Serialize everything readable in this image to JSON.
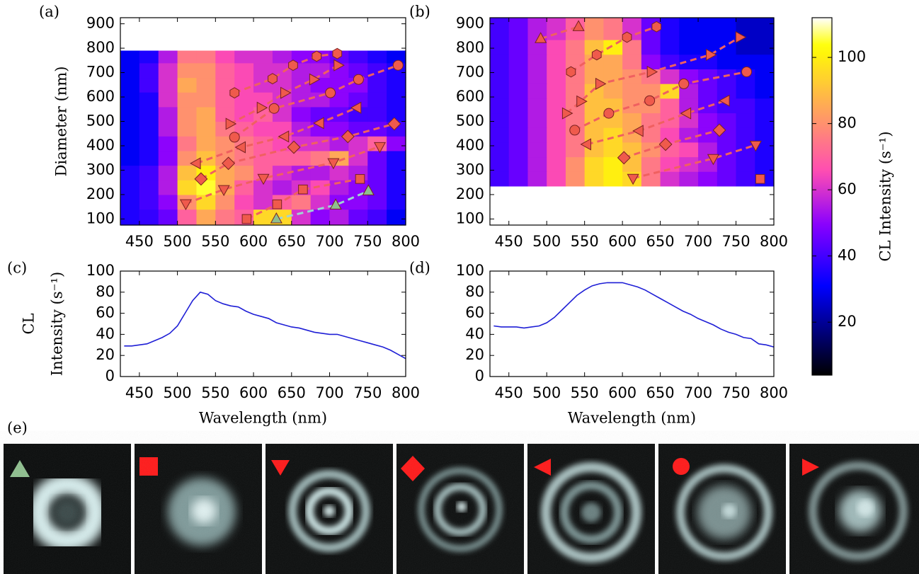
{
  "chart_data": [
    {
      "type": "heatmap",
      "label": "(a)",
      "ylabel": "Diameter (nm)",
      "colormap": "gnuplot2",
      "zlim": [
        4,
        112
      ],
      "xlim": [
        425,
        800
      ],
      "xticks": [
        450,
        500,
        550,
        600,
        650,
        700,
        750,
        800
      ],
      "ylim": [
        75,
        925
      ],
      "yticks": [
        100,
        200,
        300,
        400,
        500,
        600,
        700,
        800,
        900
      ],
      "x_edges": [
        425,
        450,
        475,
        500,
        525,
        550,
        575,
        600,
        625,
        650,
        675,
        700,
        725,
        750,
        775,
        800
      ],
      "y_edges": [
        75,
        140,
        200,
        260,
        320,
        380,
        440,
        500,
        560,
        620,
        680,
        740,
        790
      ],
      "z": [
        [
          35,
          38,
          45,
          70,
          85,
          75,
          70,
          95,
          95,
          60,
          50,
          55,
          45,
          40,
          30
        ],
        [
          35,
          40,
          50,
          80,
          95,
          80,
          65,
          60,
          70,
          75,
          60,
          50,
          50,
          45,
          35
        ],
        [
          35,
          40,
          55,
          95,
          105,
          85,
          70,
          60,
          55,
          60,
          65,
          55,
          50,
          45,
          35
        ],
        [
          35,
          40,
          55,
          90,
          100,
          85,
          80,
          70,
          60,
          55,
          55,
          60,
          55,
          45,
          35
        ],
        [
          30,
          35,
          50,
          80,
          90,
          80,
          75,
          70,
          70,
          70,
          75,
          85,
          60,
          45,
          35
        ],
        [
          30,
          35,
          50,
          75,
          85,
          80,
          75,
          70,
          65,
          60,
          60,
          55,
          60,
          70,
          50
        ],
        [
          30,
          35,
          55,
          80,
          85,
          75,
          70,
          65,
          65,
          55,
          50,
          50,
          45,
          45,
          40
        ],
        [
          30,
          35,
          55,
          80,
          85,
          70,
          65,
          70,
          60,
          50,
          45,
          45,
          40,
          40,
          35
        ],
        [
          30,
          35,
          60,
          80,
          80,
          70,
          65,
          65,
          60,
          55,
          55,
          50,
          45,
          40,
          35
        ],
        [
          30,
          40,
          60,
          85,
          80,
          70,
          65,
          60,
          60,
          55,
          50,
          50,
          50,
          40,
          35
        ],
        [
          30,
          40,
          60,
          80,
          80,
          70,
          65,
          60,
          60,
          55,
          55,
          50,
          45,
          40,
          35
        ],
        [
          30,
          35,
          55,
          75,
          75,
          65,
          60,
          60,
          55,
          50,
          50,
          45,
          40,
          35,
          30
        ]
      ],
      "series": [
        {
          "marker": "^",
          "color": "#8fbf8f",
          "line_color": "#9fd3d3",
          "x": [
            630,
            708,
            751
          ],
          "values": [
            100,
            157,
            215
          ]
        },
        {
          "marker": "s",
          "color": "#ef5a4c",
          "line_color": "#f06060",
          "x": [
            591,
            631,
            665,
            740
          ],
          "values": [
            100,
            160,
            221,
            264
          ]
        },
        {
          "marker": "v",
          "color": "#ef5a4c",
          "line_color": "#f06060",
          "x": [
            511,
            561,
            613,
            705,
            766
          ],
          "values": [
            163,
            221,
            267,
            331,
            397
          ]
        },
        {
          "marker": "D",
          "color": "#ef5a4c",
          "line_color": "#f06060",
          "x": [
            531,
            567,
            653,
            724,
            785
          ],
          "values": [
            264,
            328,
            394,
            438,
            490
          ]
        },
        {
          "marker": "<",
          "color": "#ef5a4c",
          "line_color": "#f06060",
          "x": [
            525,
            584,
            641,
            687,
            736
          ],
          "values": [
            328,
            394,
            438,
            493,
            556
          ]
        },
        {
          "marker": "o",
          "color": "#ef5a4c",
          "line_color": "#f06060",
          "x": [
            575,
            627,
            701,
            738,
            790
          ],
          "values": [
            435,
            553,
            617,
            672,
            730
          ]
        },
        {
          "marker": ">",
          "color": "#ef5a4c",
          "line_color": "#f06060",
          "x": [
            569,
            610,
            641,
            679,
            711
          ],
          "values": [
            490,
            556,
            617,
            672,
            730
          ]
        },
        {
          "marker": "h",
          "color": "#ef5a4c",
          "line_color": "#f06060",
          "x": [
            575,
            625,
            652,
            683,
            710
          ],
          "values": [
            617,
            675,
            730,
            767,
            778
          ]
        }
      ]
    },
    {
      "type": "heatmap",
      "label": "(b)",
      "colormap": "gnuplot2",
      "zlim": [
        4,
        112
      ],
      "xlim": [
        425,
        800
      ],
      "xticks": [
        450,
        500,
        550,
        600,
        650,
        700,
        750,
        800
      ],
      "ylim": [
        75,
        925
      ],
      "yticks": [
        100,
        200,
        300,
        400,
        500,
        600,
        700,
        800,
        900
      ],
      "x_edges": [
        425,
        450,
        475,
        500,
        525,
        550,
        575,
        600,
        625,
        650,
        675,
        700,
        725,
        750,
        775,
        800
      ],
      "y_edges": [
        235,
        295,
        355,
        415,
        475,
        535,
        595,
        655,
        715,
        775,
        835,
        925
      ],
      "z": [
        [
          40,
          45,
          55,
          65,
          80,
          95,
          100,
          95,
          75,
          60,
          55,
          50,
          45,
          40,
          35
        ],
        [
          40,
          45,
          55,
          65,
          80,
          95,
          100,
          90,
          75,
          65,
          60,
          55,
          45,
          40,
          35
        ],
        [
          40,
          45,
          55,
          65,
          75,
          90,
          95,
          90,
          80,
          70,
          65,
          55,
          45,
          40,
          35
        ],
        [
          40,
          45,
          55,
          65,
          75,
          90,
          95,
          85,
          75,
          65,
          55,
          50,
          45,
          40,
          35
        ],
        [
          40,
          45,
          55,
          65,
          75,
          90,
          90,
          85,
          75,
          70,
          60,
          50,
          45,
          40,
          35
        ],
        [
          40,
          45,
          55,
          65,
          75,
          90,
          90,
          80,
          80,
          70,
          55,
          45,
          40,
          40,
          35
        ],
        [
          40,
          45,
          55,
          65,
          75,
          90,
          85,
          80,
          80,
          95,
          55,
          45,
          40,
          35,
          30
        ],
        [
          40,
          45,
          55,
          65,
          75,
          85,
          85,
          80,
          75,
          60,
          50,
          45,
          40,
          35,
          30
        ],
        [
          40,
          45,
          55,
          65,
          75,
          85,
          85,
          75,
          50,
          40,
          35,
          35,
          30,
          30,
          30
        ],
        [
          40,
          45,
          55,
          65,
          75,
          90,
          100,
          75,
          45,
          35,
          30,
          30,
          30,
          25,
          25
        ],
        [
          40,
          45,
          55,
          60,
          70,
          80,
          75,
          60,
          45,
          35,
          30,
          30,
          30,
          25,
          25
        ]
      ],
      "series": [
        {
          "marker": "^",
          "color": "#ef5a4c",
          "line_color": "#f06060",
          "x": [
            492,
            542
          ],
          "values": [
            839,
            888
          ]
        },
        {
          "marker": "h",
          "color": "#ef5a4c",
          "line_color": "#f06060",
          "x": [
            532,
            566,
            606,
            645
          ],
          "values": [
            703,
            773,
            845,
            888
          ]
        },
        {
          "marker": "o",
          "color": "#ef5a4c",
          "line_color": "#f06060",
          "x": [
            537,
            582,
            636,
            681,
            764
          ],
          "values": [
            464,
            533,
            585,
            654,
            703
          ]
        },
        {
          "marker": ">",
          "color": "#ef5a4c",
          "line_color": "#f06060",
          "x": [
            526,
            545,
            570,
            638,
            716,
            755
          ],
          "values": [
            533,
            582,
            654,
            703,
            773,
            845
          ]
        },
        {
          "marker": "<",
          "color": "#ef5a4c",
          "line_color": "#f06060",
          "x": [
            553,
            622,
            685,
            736
          ],
          "values": [
            406,
            461,
            533,
            585
          ]
        },
        {
          "marker": "D",
          "color": "#ef5a4c",
          "line_color": "#f06060",
          "x": [
            602,
            657,
            728
          ],
          "values": [
            351,
            406,
            464
          ]
        },
        {
          "marker": "v",
          "color": "#ef5a4c",
          "line_color": "#f06060",
          "x": [
            614,
            720,
            776
          ],
          "values": [
            267,
            348,
            403
          ]
        },
        {
          "marker": "s",
          "color": "#ef5a4c",
          "line_color": "#f06060",
          "x": [
            782
          ],
          "values": [
            264
          ]
        }
      ]
    },
    {
      "type": "line",
      "label": "(c)",
      "xlabel": "Wavelength (nm)",
      "ylabel": [
        "CL",
        "Intensity (s⁻¹)"
      ],
      "color": "#1f1fd6",
      "xlim": [
        425,
        800
      ],
      "xticks": [
        450,
        500,
        550,
        600,
        650,
        700,
        750,
        800
      ],
      "ylim": [
        0,
        100
      ],
      "yticks": [
        0,
        20,
        40,
        60,
        80,
        100
      ],
      "x": [
        430,
        440,
        450,
        460,
        470,
        480,
        490,
        500,
        510,
        520,
        530,
        540,
        550,
        560,
        570,
        580,
        590,
        600,
        610,
        620,
        630,
        640,
        650,
        660,
        670,
        680,
        690,
        700,
        710,
        720,
        730,
        740,
        750,
        760,
        770,
        780,
        790,
        800
      ],
      "values": [
        29,
        29,
        30,
        31,
        34,
        37,
        41,
        48,
        60,
        72,
        80,
        78,
        72,
        69,
        67,
        66,
        62,
        59,
        57,
        55,
        51,
        49,
        47,
        46,
        44,
        42,
        41,
        40,
        40,
        38,
        36,
        34,
        32,
        30,
        28,
        25,
        21,
        17
      ]
    },
    {
      "type": "line",
      "label": "(d)",
      "xlabel": "Wavelength (nm)",
      "color": "#1f1fd6",
      "xlim": [
        425,
        800
      ],
      "xticks": [
        450,
        500,
        550,
        600,
        650,
        700,
        750,
        800
      ],
      "ylim": [
        0,
        100
      ],
      "yticks": [
        0,
        20,
        40,
        60,
        80,
        100
      ],
      "x": [
        430,
        440,
        450,
        460,
        470,
        480,
        490,
        500,
        510,
        520,
        530,
        540,
        550,
        560,
        570,
        580,
        590,
        600,
        610,
        620,
        630,
        640,
        650,
        660,
        670,
        680,
        690,
        700,
        710,
        720,
        730,
        740,
        750,
        760,
        770,
        780,
        790,
        800
      ],
      "values": [
        48,
        47,
        47,
        47,
        46,
        47,
        48,
        51,
        56,
        63,
        70,
        77,
        82,
        86,
        88,
        89,
        89,
        89,
        87,
        85,
        82,
        78,
        74,
        70,
        66,
        62,
        59,
        55,
        52,
        49,
        45,
        42,
        40,
        37,
        36,
        31,
        30,
        28
      ]
    },
    {
      "type": "colorbar",
      "label": "CL Intensity (s⁻¹)",
      "colormap": "gnuplot2",
      "zlim": [
        4,
        112
      ],
      "zticks": [
        20,
        40,
        60,
        80,
        100
      ]
    }
  ],
  "figure_e": {
    "label": "(e)"
  }
}
